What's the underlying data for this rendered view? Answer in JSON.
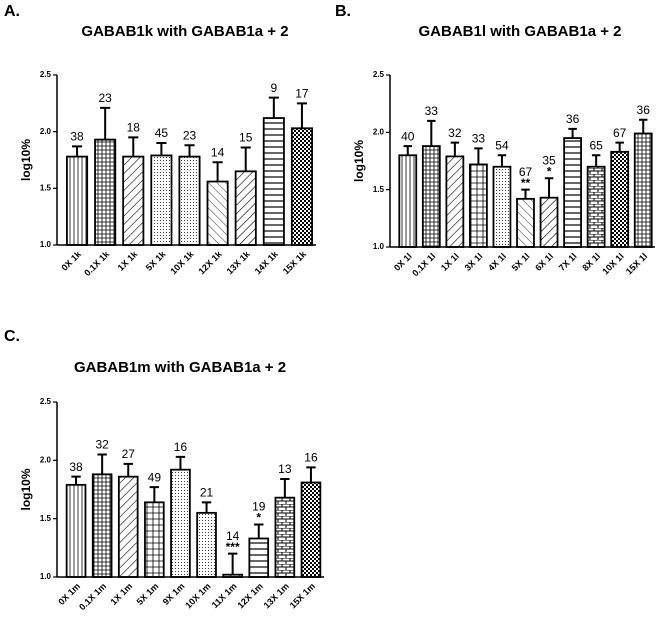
{
  "chart_data": [
    {
      "type": "bar",
      "panel_label": "A.",
      "title": "GABAB1k with GABAB1a + 2",
      "ylabel": "log10%",
      "categories": [
        "0X 1k",
        "0.1X 1k",
        "1X 1k",
        "5X 1k",
        "10X 1k",
        "12X 1k",
        "13X 1k",
        "14X 1k",
        "15X 1k"
      ],
      "values": [
        1.78,
        1.93,
        1.78,
        1.79,
        1.78,
        1.56,
        1.65,
        2.12,
        2.03
      ],
      "errors": [
        0.09,
        0.28,
        0.17,
        0.11,
        0.1,
        0.17,
        0.21,
        0.18,
        0.22
      ],
      "n_labels": [
        "38",
        "23",
        "18",
        "45",
        "23",
        "14",
        "15",
        "9",
        "17"
      ],
      "stars": [
        null,
        null,
        null,
        null,
        null,
        null,
        null,
        null,
        null
      ],
      "ylim": [
        1.0,
        2.5
      ],
      "yticks": [
        {
          "value": 1.0,
          "label": "1.0"
        },
        {
          "value": 1.5,
          "label": "1.5"
        },
        {
          "value": 2.0,
          "label": "2.0"
        },
        {
          "value": 2.5,
          "label": "2.5"
        }
      ]
    },
    {
      "type": "bar",
      "panel_label": "B.",
      "title": "GABAB1l with GABAB1a + 2",
      "ylabel": "log10%",
      "categories": [
        "0X 1l",
        "0.1X 1l",
        "1X 1l",
        "3X 1l",
        "4X 1l",
        "5X 1l",
        "6X 1l",
        "7X 1l",
        "8X 1l",
        "10X 1l",
        "15X 1l"
      ],
      "values": [
        1.8,
        1.88,
        1.79,
        1.72,
        1.7,
        1.42,
        1.43,
        1.95,
        1.7,
        1.83,
        1.99
      ],
      "errors": [
        0.08,
        0.22,
        0.12,
        0.14,
        0.1,
        0.08,
        0.17,
        0.08,
        0.1,
        0.08,
        0.12
      ],
      "n_labels": [
        "40",
        "33",
        "32",
        "33",
        "54",
        "67",
        "35",
        "36",
        "65",
        "67",
        "36"
      ],
      "stars": [
        null,
        null,
        null,
        null,
        null,
        "**",
        "*",
        null,
        null,
        null,
        null
      ],
      "ylim": [
        1.0,
        2.5
      ],
      "yticks": [
        {
          "value": 1.0,
          "label": "1.0"
        },
        {
          "value": 1.5,
          "label": "1.5"
        },
        {
          "value": 2.0,
          "label": "2.0"
        },
        {
          "value": 2.5,
          "label": "2.5"
        }
      ]
    },
    {
      "type": "bar",
      "panel_label": "C.",
      "title": "GABAB1m with GABAB1a + 2",
      "ylabel": "log10%",
      "categories": [
        "0X 1m",
        "0.1X 1m",
        "1X 1m",
        "5X 1m",
        "9X 1m",
        "10X 1m",
        "11X 1m",
        "12X 1m",
        "13X 1m",
        "15X 1m"
      ],
      "values": [
        1.79,
        1.88,
        1.86,
        1.64,
        1.92,
        1.55,
        1.02,
        1.33,
        1.68,
        1.81
      ],
      "errors": [
        0.07,
        0.17,
        0.11,
        0.13,
        0.11,
        0.09,
        0.18,
        0.12,
        0.16,
        0.13
      ],
      "n_labels": [
        "38",
        "32",
        "27",
        "49",
        "16",
        "21",
        "14",
        "19",
        "13",
        "16"
      ],
      "stars": [
        null,
        null,
        null,
        null,
        null,
        null,
        "***",
        "*",
        null,
        null
      ],
      "ylim": [
        1.0,
        2.5
      ],
      "yticks": [
        {
          "value": 1.0,
          "label": "1.0"
        },
        {
          "value": 1.5,
          "label": "1.5"
        },
        {
          "value": 2.0,
          "label": "2.0"
        },
        {
          "value": 2.5,
          "label": "2.5"
        }
      ]
    }
  ]
}
